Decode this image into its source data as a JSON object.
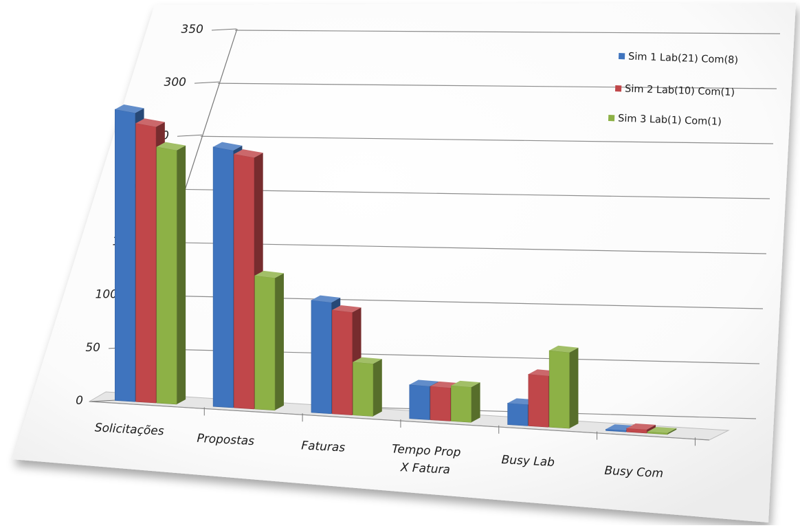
{
  "chart_data": {
    "type": "bar",
    "three_d": true,
    "categories": [
      "Solicitações",
      "Propostas",
      "Faturas",
      "Tempo Prop X Fatura",
      "Busy Lab",
      "Busy Com"
    ],
    "category_lines": [
      [
        "Solicitações"
      ],
      [
        "Propostas"
      ],
      [
        "Faturas"
      ],
      [
        "Tempo Prop",
        "X Fatura"
      ],
      [
        "Busy Lab"
      ],
      [
        "Busy Com"
      ]
    ],
    "series": [
      {
        "name": "Sim 1 Lab(21) Com(8)",
        "color": "#3f74be",
        "values": [
          316,
          294,
          133,
          42,
          28,
          2
        ]
      },
      {
        "name": "Sim 2 Lab(10) Com(1)",
        "color": "#c0474a",
        "values": [
          305,
          290,
          124,
          42,
          68,
          5
        ]
      },
      {
        "name": "Sim 3 Lab(1) Com(1)",
        "color": "#8db146",
        "values": [
          283,
          154,
          64,
          45,
          102,
          2
        ]
      }
    ],
    "yticks": [
      0,
      50,
      100,
      150,
      200,
      250,
      300,
      350
    ],
    "ylim": [
      0,
      350
    ],
    "grid": true,
    "legend": "top-right",
    "title": "",
    "xlabel": "",
    "ylabel": ""
  }
}
